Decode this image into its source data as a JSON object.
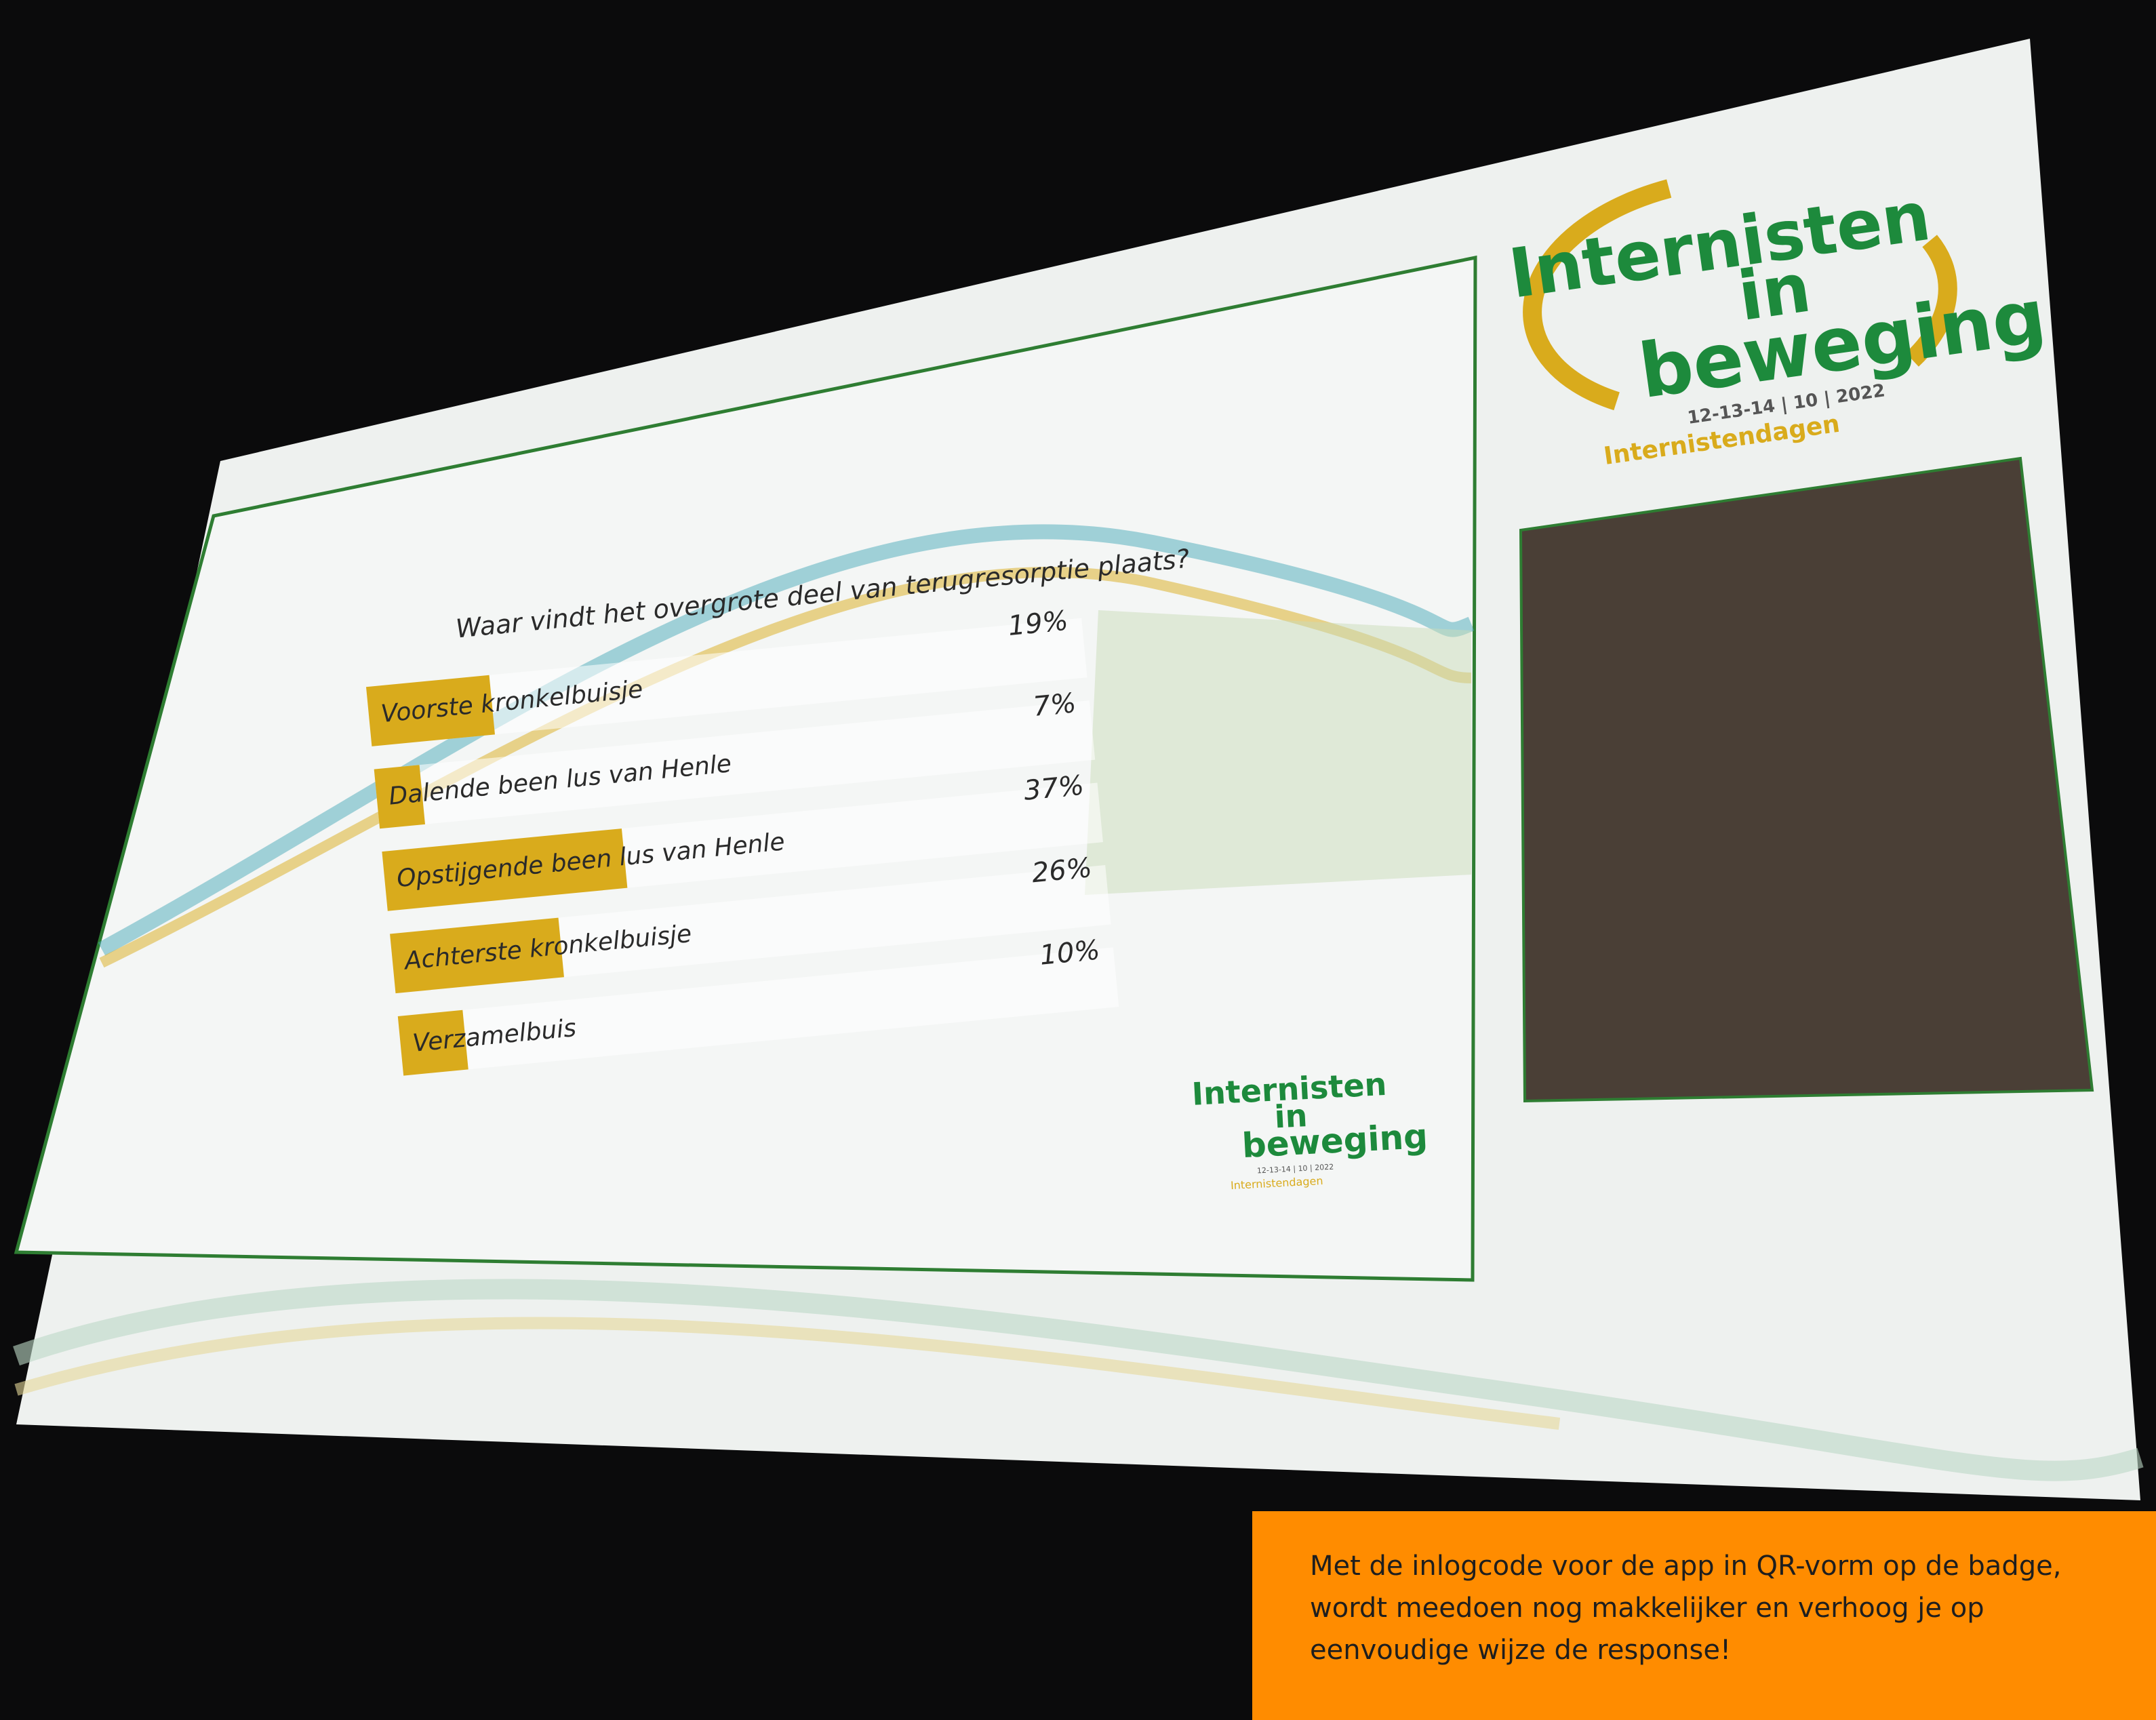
{
  "chart_data": {
    "type": "hbar",
    "title": "Waar vindt het overgrote deel van terugresorptie plaats?",
    "categories": [
      "Voorste kronkelbuisje",
      "Dalende been lus van Henle",
      "Opstijgende been lus van Henle",
      "Achterste kronkelbuisje",
      "Verzamelbuis"
    ],
    "values": [
      19,
      7,
      37,
      26,
      10
    ],
    "value_labels": [
      "19%",
      "7%",
      "37%",
      "26%",
      "10%"
    ],
    "color": "#d9ab1c",
    "xlim": [
      0,
      100
    ]
  },
  "logo": {
    "line1": "Internisten",
    "line2": "in",
    "line3": "beweging",
    "dates": "12-13-14 | 10 | 2022",
    "arc": "Internistendagen"
  },
  "caption": "Met de inlogcode voor de app in QR-vorm op de badge, wordt meedoen nog makkelijker en verhoog je op eenvoudige wijze de response!"
}
